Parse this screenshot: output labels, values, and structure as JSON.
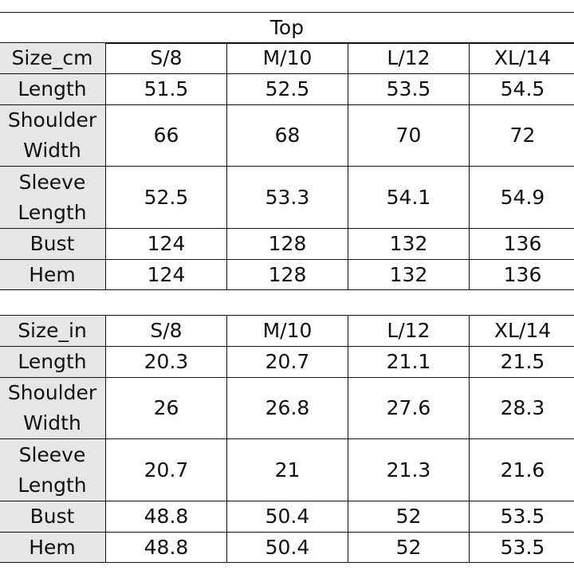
{
  "title": "Top",
  "tables": [
    {
      "header": [
        "Size_cm",
        "S/8",
        "M/10",
        "L/12",
        "XL/14"
      ],
      "rows": [
        [
          "Length",
          "51.5",
          "52.5",
          "53.5",
          "54.5"
        ],
        [
          "Shoulder Width",
          "66",
          "68",
          "70",
          "72"
        ],
        [
          "Sleeve Length",
          "52.5",
          "53.3",
          "54.1",
          "54.9"
        ],
        [
          "Bust",
          "124",
          "128",
          "132",
          "136"
        ],
        [
          "Hem",
          "124",
          "128",
          "132",
          "136"
        ]
      ]
    },
    {
      "header": [
        "Size_in",
        "S/8",
        "M/10",
        "L/12",
        "XL/14"
      ],
      "rows": [
        [
          "Length",
          "20.3",
          "20.7",
          "21.1",
          "21.5"
        ],
        [
          "Shoulder Width",
          "26",
          "26.8",
          "27.6",
          "28.3"
        ],
        [
          "Sleeve Length",
          "20.7",
          "21",
          "21.3",
          "21.6"
        ],
        [
          "Bust",
          "48.8",
          "50.4",
          "52",
          "53.5"
        ],
        [
          "Hem",
          "48.8",
          "50.4",
          "52",
          "53.5"
        ]
      ]
    }
  ]
}
